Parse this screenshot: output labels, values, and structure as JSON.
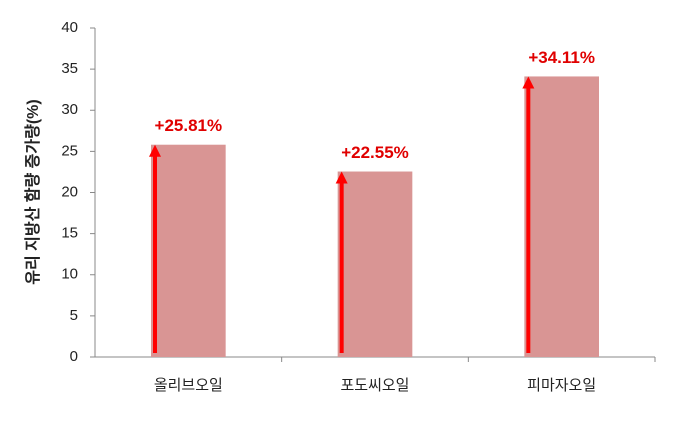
{
  "chart_data": {
    "type": "bar",
    "y_label": "유리 지방산 함량 증가량(%)",
    "categories": [
      "올리브오일",
      "포도씨오일",
      "피마자오일"
    ],
    "values": [
      25.81,
      22.55,
      34.11
    ],
    "value_labels": [
      "+25.81%",
      "+22.55%",
      "+34.11%"
    ],
    "color": "#d99594",
    "arrow_color": "#ff0000",
    "label_color": "#e00000",
    "ylim": [
      0,
      40
    ],
    "yticks": [
      0,
      5,
      10,
      15,
      20,
      25,
      30,
      35,
      40
    ],
    "grid": false
  }
}
